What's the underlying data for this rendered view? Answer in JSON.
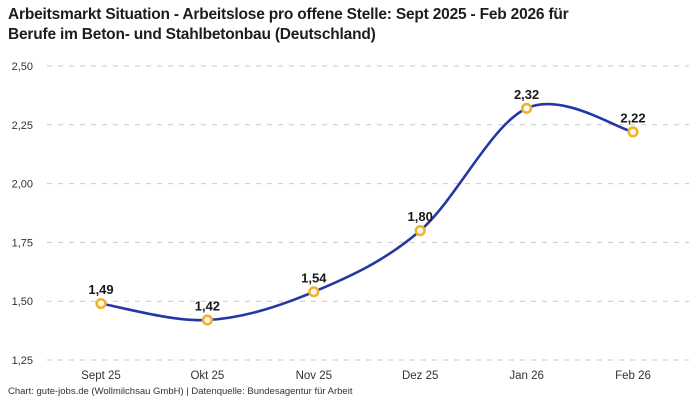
{
  "header": {
    "title_lines": [
      "Arbeitsmarkt Situation - Arbeitslose pro offene Stelle: Sept 2025 - Feb 2026 für",
      "Berufe im Beton- und Stahlbetonbau (Deutschland)"
    ]
  },
  "chart_data": {
    "type": "line",
    "title": "Arbeitsmarkt Situation - Arbeitslose pro offene Stelle: Sept 2025 - Feb 2026 für Berufe im Beton- und Stahlbetonbau (Deutschland)",
    "categories": [
      "Sept 25",
      "Okt 25",
      "Nov 25",
      "Dez 25",
      "Jan 26",
      "Feb 26"
    ],
    "values": [
      1.49,
      1.42,
      1.54,
      1.8,
      2.32,
      2.22
    ],
    "value_labels": [
      "1,49",
      "1,42",
      "1,54",
      "1,80",
      "2,32",
      "2,22"
    ],
    "y_tick_values": [
      2.5,
      2.25,
      2.0,
      1.75,
      1.5,
      1.25
    ],
    "y_tick_labels": [
      "2,50",
      "2,25",
      "2,00",
      "1,75",
      "1,50",
      "1,25"
    ],
    "ylim": [
      1.25,
      2.5
    ],
    "xlabel": "",
    "ylabel": "",
    "grid": "dashed-horizontal",
    "legend": "none",
    "colors": {
      "line": "#2438a5",
      "marker_ring": "#f3b229",
      "marker_fill": "#ffffff",
      "gridline": "#c9c9c9",
      "axis_text": "#333333",
      "label_text": "#1a1a1a"
    }
  },
  "footer": {
    "credit": "Chart: gute-jobs.de (Wollmilchsau GmbH) | Datenquelle: Bundesagentur für Arbeit"
  }
}
